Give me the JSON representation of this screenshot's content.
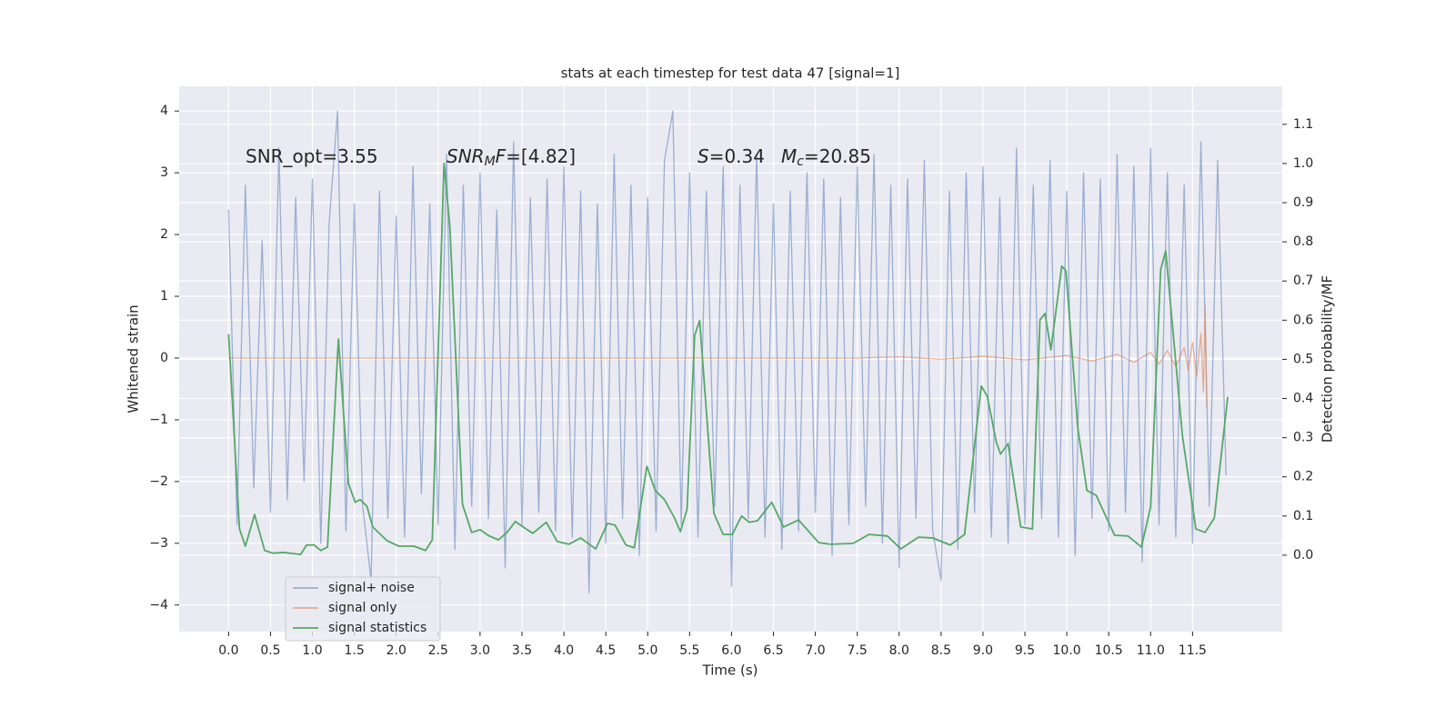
{
  "chart_data": {
    "type": "line",
    "title": "stats at each timestep for test data 47 [signal=1]",
    "xlabel": "Time (s)",
    "ylabel": "Whitened strain",
    "y2label": "Detection probability/MF",
    "annotations": [
      [
        {
          "text": "SNR_opt=3.55"
        }
      ],
      [
        {
          "text": "SNR",
          "style": "italic"
        },
        {
          "text": "M",
          "style": "sub"
        },
        {
          "text": "F",
          "style": "italic"
        },
        {
          "text": "=[4.82]"
        }
      ],
      [
        {
          "text": "S",
          "style": "italic"
        },
        {
          "text": "=0.34"
        }
      ],
      [
        {
          "text": "M",
          "style": "italic"
        },
        {
          "text": "c",
          "style": "sub"
        },
        {
          "text": "=20.85"
        }
      ]
    ],
    "xlim": [
      -0.59,
      12.57
    ],
    "ylim": [
      -4.43,
      4.4
    ],
    "y2lim": [
      -0.195,
      1.197
    ],
    "xticks": [
      {
        "value": 0,
        "label": "0.0"
      },
      0.5,
      {
        "value": 1,
        "label": "1.0"
      },
      1.5,
      {
        "value": 2,
        "label": "2.0"
      },
      2.5,
      {
        "value": 3,
        "label": "3.0"
      },
      3.5,
      {
        "value": 4,
        "label": "4.0"
      },
      4.5,
      {
        "value": 5,
        "label": "5.0"
      },
      5.5,
      {
        "value": 6,
        "label": "6.0"
      },
      6.5,
      {
        "value": 7,
        "label": "7.0"
      },
      7.5,
      {
        "value": 8,
        "label": "8.0"
      },
      8.5,
      {
        "value": 9,
        "label": "9.0"
      },
      9.5,
      {
        "value": 10,
        "label": "10.0"
      },
      10.5,
      {
        "value": 11,
        "label": "11.0"
      },
      11.5
    ],
    "yticks": [
      {
        "value": -4,
        "label": "−4"
      },
      {
        "value": -3,
        "label": "−3"
      },
      {
        "value": -2,
        "label": "−2"
      },
      {
        "value": -1,
        "label": "−1"
      },
      0,
      1,
      2,
      3,
      4
    ],
    "y2ticks": [
      {
        "value": 0,
        "label": "0.0"
      },
      0.1,
      0.2,
      0.3,
      0.4,
      0.5,
      0.6,
      0.7,
      0.8,
      0.9,
      {
        "value": 1,
        "label": "1.0"
      },
      1.1
    ],
    "grid": true,
    "legend": "lower left",
    "series": [
      {
        "name": "signal+ noise",
        "color": "#4c72b0",
        "opacity": 0.5,
        "x": [
          0.0,
          0.1,
          0.2,
          0.3,
          0.4,
          0.5,
          0.6,
          0.7,
          0.8,
          0.9,
          1.0,
          1.1,
          1.2,
          1.3,
          1.4,
          1.5,
          1.6,
          1.7,
          1.8,
          1.9,
          2.0,
          2.1,
          2.2,
          2.3,
          2.4,
          2.5,
          2.6,
          2.7,
          2.8,
          2.9,
          3.0,
          3.1,
          3.2,
          3.3,
          3.4,
          3.5,
          3.6,
          3.7,
          3.8,
          3.9,
          4.0,
          4.1,
          4.2,
          4.3,
          4.4,
          4.5,
          4.6,
          4.7,
          4.8,
          4.9,
          5.0,
          5.1,
          5.2,
          5.3,
          5.4,
          5.5,
          5.6,
          5.7,
          5.8,
          5.9,
          6.0,
          6.1,
          6.2,
          6.3,
          6.4,
          6.5,
          6.6,
          6.7,
          6.8,
          6.9,
          7.0,
          7.1,
          7.2,
          7.3,
          7.4,
          7.5,
          7.6,
          7.7,
          7.8,
          7.9,
          8.0,
          8.1,
          8.2,
          8.3,
          8.4,
          8.5,
          8.6,
          8.7,
          8.8,
          8.9,
          9.0,
          9.1,
          9.2,
          9.3,
          9.4,
          9.5,
          9.6,
          9.7,
          9.8,
          9.9,
          10.0,
          10.1,
          10.2,
          10.3,
          10.4,
          10.5,
          10.6,
          10.7,
          10.8,
          10.9,
          11.0,
          11.1,
          11.2,
          11.3,
          11.4,
          11.5,
          11.6,
          11.7,
          11.8,
          11.9
        ],
        "values": [
          2.4,
          -2.7,
          2.8,
          -2.1,
          1.9,
          -2.5,
          3.4,
          -2.3,
          2.6,
          -2.0,
          2.9,
          -3.0,
          2.2,
          4.0,
          -2.8,
          2.5,
          -2.4,
          -3.6,
          2.7,
          -2.6,
          2.3,
          -2.9,
          3.1,
          -2.2,
          2.5,
          -2.7,
          3.3,
          -3.1,
          2.8,
          -2.4,
          3.0,
          -2.6,
          2.4,
          -3.4,
          3.5,
          -2.7,
          2.6,
          -2.5,
          2.9,
          -2.8,
          3.1,
          -2.9,
          2.7,
          -3.8,
          2.5,
          -3.0,
          3.3,
          -2.6,
          2.8,
          -3.2,
          2.6,
          -2.8,
          3.2,
          4.0,
          -2.7,
          3.0,
          -2.9,
          2.7,
          -2.4,
          3.1,
          -3.7,
          2.8,
          -2.6,
          3.3,
          -2.9,
          2.5,
          -3.1,
          2.7,
          -2.8,
          3.0,
          -2.5,
          2.9,
          -3.2,
          2.6,
          -2.7,
          3.1,
          -2.4,
          3.3,
          -3.0,
          2.8,
          -3.4,
          2.9,
          -2.6,
          3.2,
          -2.8,
          -3.6,
          2.7,
          -3.1,
          3.0,
          -2.5,
          3.1,
          -2.9,
          2.6,
          -3.0,
          3.4,
          -2.7,
          2.8,
          -2.6,
          3.2,
          -2.9,
          2.7,
          -3.2,
          3.0,
          -2.6,
          2.9,
          -2.8,
          3.3,
          -2.5,
          3.1,
          -3.3,
          3.4,
          -2.7,
          3.0,
          -2.9,
          2.8,
          -3.0,
          3.5,
          -2.4,
          3.2,
          -1.9
        ]
      },
      {
        "name": "signal only",
        "color": "#dd8452",
        "opacity": 0.6,
        "x": [
          0.0,
          7.5,
          8.0,
          8.5,
          9.0,
          9.5,
          10.0,
          10.3,
          10.6,
          10.8,
          11.0,
          11.1,
          11.2,
          11.3,
          11.4,
          11.45,
          11.5,
          11.55,
          11.6,
          11.63,
          11.65,
          11.67
        ],
        "values": [
          0,
          0,
          0.02,
          -0.02,
          0.03,
          -0.03,
          0.04,
          -0.05,
          0.06,
          -0.07,
          0.09,
          -0.1,
          0.12,
          -0.14,
          0.17,
          -0.2,
          0.25,
          -0.3,
          0.4,
          -0.55,
          0.85,
          -0.8
        ]
      },
      {
        "name": "signal statistics",
        "color": "#55a868",
        "opacity": 1,
        "axis": "y2",
        "x": [
          0,
          0.13,
          0.2,
          0.31,
          0.43,
          0.53,
          0.65,
          0.86,
          0.93,
          1.02,
          1.1,
          1.18,
          1.31,
          1.43,
          1.51,
          1.57,
          1.65,
          1.72,
          1.89,
          2.03,
          2.21,
          2.35,
          2.43,
          2.57,
          2.64,
          2.79,
          2.9,
          3.0,
          3.11,
          3.22,
          3.33,
          3.42,
          3.55,
          3.63,
          3.79,
          3.92,
          4.06,
          4.2,
          4.38,
          4.52,
          4.61,
          4.74,
          4.84,
          4.99,
          5.09,
          5.2,
          5.32,
          5.39,
          5.47,
          5.56,
          5.62,
          5.79,
          5.9,
          6.01,
          6.12,
          6.21,
          6.31,
          6.48,
          6.62,
          6.8,
          7.04,
          7.18,
          7.45,
          7.64,
          7.86,
          8.02,
          8.23,
          8.4,
          8.61,
          8.78,
          8.98,
          9.05,
          9.16,
          9.21,
          9.3,
          9.45,
          9.59,
          9.68,
          9.74,
          9.81,
          9.94,
          9.99,
          10.13,
          10.24,
          10.35,
          10.57,
          10.73,
          10.89,
          11.0,
          11.12,
          11.18,
          11.38,
          11.54,
          11.65,
          11.76,
          11.87,
          11.92
        ],
        "values": [
          0.564,
          0.067,
          0.023,
          0.104,
          0.012,
          0.005,
          0.007,
          0.002,
          0.026,
          0.026,
          0.012,
          0.021,
          0.552,
          0.183,
          0.135,
          0.142,
          0.125,
          0.072,
          0.037,
          0.023,
          0.023,
          0.012,
          0.039,
          1.0,
          0.838,
          0.13,
          0.058,
          0.065,
          0.049,
          0.039,
          0.06,
          0.086,
          0.067,
          0.056,
          0.084,
          0.035,
          0.028,
          0.044,
          0.016,
          0.081,
          0.077,
          0.026,
          0.019,
          0.227,
          0.165,
          0.142,
          0.095,
          0.06,
          0.118,
          0.561,
          0.599,
          0.107,
          0.053,
          0.053,
          0.1,
          0.084,
          0.088,
          0.135,
          0.072,
          0.09,
          0.032,
          0.028,
          0.03,
          0.053,
          0.049,
          0.016,
          0.046,
          0.044,
          0.026,
          0.053,
          0.432,
          0.406,
          0.288,
          0.258,
          0.285,
          0.072,
          0.067,
          0.601,
          0.617,
          0.524,
          0.738,
          0.726,
          0.327,
          0.165,
          0.153,
          0.051,
          0.049,
          0.021,
          0.123,
          0.729,
          0.777,
          0.304,
          0.067,
          0.058,
          0.095,
          0.309,
          0.404
        ]
      }
    ]
  }
}
